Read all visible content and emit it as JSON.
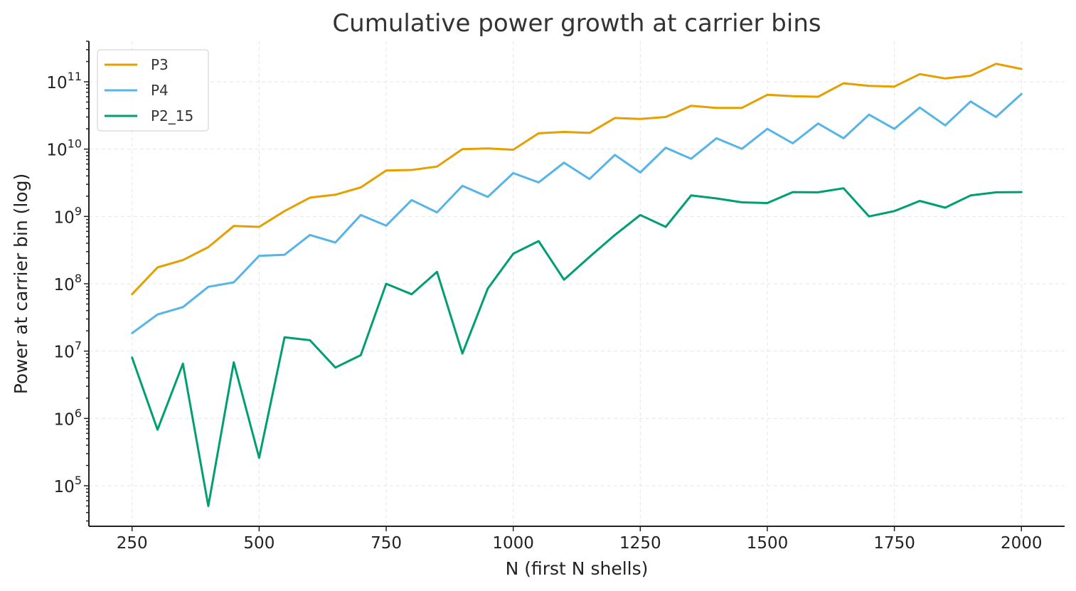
{
  "chart_data": {
    "type": "line",
    "title": "Cumulative power growth at carrier bins",
    "xlabel": "N (first N shells)",
    "ylabel": "Power at carrier bin (log)",
    "yscale": "log",
    "xlim": [
      165,
      2085
    ],
    "ylim": [
      25000,
      400000000000
    ],
    "grid": true,
    "legend_position": "top-left",
    "x_ticks": [
      250,
      500,
      750,
      1000,
      1250,
      1500,
      1750,
      2000
    ],
    "y_ticks": [
      100000,
      1000000,
      10000000,
      100000000,
      1000000000,
      10000000000,
      100000000000
    ],
    "y_tick_labels": [
      {
        "base": "10",
        "exp": "5"
      },
      {
        "base": "10",
        "exp": "6"
      },
      {
        "base": "10",
        "exp": "7"
      },
      {
        "base": "10",
        "exp": "8"
      },
      {
        "base": "10",
        "exp": "9"
      },
      {
        "base": "10",
        "exp": "10"
      },
      {
        "base": "10",
        "exp": "11"
      }
    ],
    "x": [
      250,
      300,
      350,
      400,
      450,
      500,
      550,
      600,
      650,
      700,
      750,
      800,
      850,
      900,
      950,
      1000,
      1050,
      1100,
      1150,
      1200,
      1250,
      1300,
      1350,
      1400,
      1450,
      1500,
      1550,
      1600,
      1650,
      1700,
      1750,
      1800,
      1850,
      1900,
      1950,
      2000
    ],
    "series": [
      {
        "name": "P3",
        "color": "#E69F00",
        "values": [
          70000000.0,
          175000000.0,
          225000000.0,
          350000000.0,
          720000000.0,
          700000000.0,
          1200000000.0,
          1900000000.0,
          2100000000.0,
          2700000000.0,
          4800000000.0,
          4900000000.0,
          5500000000.0,
          10000000000.0,
          10200000000.0,
          9800000000.0,
          17200000000.0,
          18000000000.0,
          17400000000.0,
          29000000000.0,
          28000000000.0,
          30000000000.0,
          44000000000.0,
          41000000000.0,
          41000000000.0,
          64000000000.0,
          61000000000.0,
          60000000000.0,
          95000000000.0,
          87000000000.0,
          85000000000.0,
          130000000000.0,
          112000000000.0,
          123000000000.0,
          185000000000.0,
          155000000000.0
        ]
      },
      {
        "name": "P4",
        "color": "#56B4E9",
        "values": [
          18500000.0,
          35000000.0,
          45000000.0,
          90000000.0,
          105000000.0,
          260000000.0,
          270000000.0,
          530000000.0,
          410000000.0,
          1050000000.0,
          730000000.0,
          1750000000.0,
          1150000000.0,
          2850000000.0,
          1950000000.0,
          4400000000.0,
          3200000000.0,
          6300000000.0,
          3600000000.0,
          8200000000.0,
          4500000000.0,
          10500000000.0,
          7200000000.0,
          14500000000.0,
          10100000000.0,
          20000000000.0,
          12200000000.0,
          24000000000.0,
          14500000000.0,
          32500000000.0,
          20000000000.0,
          41500000000.0,
          22500000000.0,
          51000000000.0,
          30000000000.0,
          66000000000.0
        ]
      },
      {
        "name": "P2_15",
        "color": "#009E73",
        "values": [
          8000000.0,
          680000.0,
          6500000.0,
          50000.0,
          6800000.0,
          260000.0,
          16000000.0,
          14500000.0,
          5700000.0,
          8700000.0,
          100000000.0,
          70000000.0,
          150000000.0,
          9200000.0,
          85000000.0,
          280000000.0,
          430000000.0,
          115000000.0,
          250000000.0,
          530000000.0,
          1050000000.0,
          700000000.0,
          2050000000.0,
          1850000000.0,
          1620000000.0,
          1580000000.0,
          2300000000.0,
          2280000000.0,
          2620000000.0,
          1000000000.0,
          1200000000.0,
          1700000000.0,
          1350000000.0,
          2050000000.0,
          2280000000.0,
          2300000000.0
        ]
      }
    ]
  }
}
